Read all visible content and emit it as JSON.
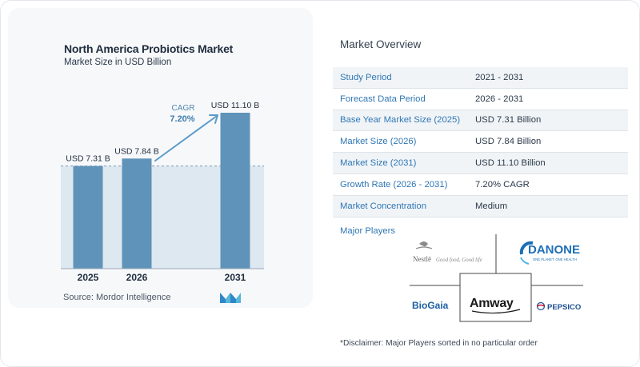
{
  "chart": {
    "title": "North America Probiotics Market",
    "subtitle": "Market Size in USD Billion",
    "source": "Source:  Mordor Intelligence",
    "cagr_label": "CAGR",
    "cagr_value": "7.20%",
    "bar_color": "#5f93b9",
    "band_color": "#dde8f1"
  },
  "chart_data": {
    "type": "bar",
    "categories": [
      "2025",
      "2026",
      "2031"
    ],
    "values": [
      7.31,
      7.84,
      11.1
    ],
    "data_labels": [
      "USD 7.31 B",
      "USD 7.84 B",
      "USD 11.10 B"
    ],
    "title": "North America Probiotics Market",
    "subtitle": "Market Size in USD Billion",
    "xlabel": "",
    "ylabel": "",
    "ylim": [
      0,
      11.1
    ],
    "grid": false,
    "annotation": "CAGR 7.20%"
  },
  "overview": {
    "title": "Market Overview",
    "rows": [
      {
        "label": "Study Period",
        "value": "2021 - 2031"
      },
      {
        "label": "Forecast Data Period",
        "value": "2026 - 2031"
      },
      {
        "label": "Base Year Market Size (2025)",
        "value": "USD 7.31 Billion"
      },
      {
        "label": "Market Size (2026)",
        "value": "USD 7.84 Billion"
      },
      {
        "label": "Market Size (2031)",
        "value": "USD 11.10 Billion"
      },
      {
        "label": "Growth Rate (2026 - 2031)",
        "value": "7.20% CAGR"
      },
      {
        "label": "Market Concentration",
        "value": "Medium"
      }
    ],
    "major_players_title": "Major Players",
    "players": {
      "nestle": "Nestlē",
      "nestle_tag": "Good food, Good life",
      "danone": "DANONE",
      "danone_tag": "ONE PLANET. ONE HEALTH",
      "biogaia": "BioGaia",
      "amway": "Amway",
      "pepsico": "PEPSICO"
    },
    "disclaimer": "*Disclaimer: Major Players sorted in no particular order"
  }
}
